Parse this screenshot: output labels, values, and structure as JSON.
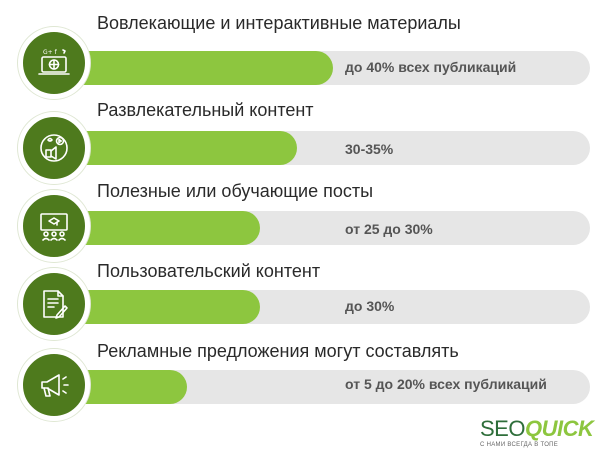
{
  "chart_data": {
    "type": "bar",
    "categories": [
      "Вовлекающие и интерактивные материалы",
      "Развлекательный контент",
      "Полезные или обучающие посты",
      "Пользовательский контент",
      "Рекламные предложения могут составлять"
    ],
    "value_labels": [
      "до 40% всех публикаций",
      "30-35%",
      "от 25 до 30%",
      "до 30%",
      "от 5 до 20% всех публикаций"
    ],
    "values": [
      40,
      35,
      30,
      30,
      20
    ],
    "xlim": [
      0,
      75
    ],
    "icons": [
      "social-media-laptop-icon",
      "entertainment-icon",
      "presentation-board-icon",
      "document-edit-icon",
      "megaphone-icon"
    ],
    "colors": {
      "bar": "#8dc63f",
      "track": "#e6e6e6",
      "circle": "#4e7a1d"
    }
  },
  "logo": {
    "seo": "SEO",
    "quick": "QUICK",
    "tagline": "С НАМИ ВСЕГДА В ТОПЕ"
  }
}
